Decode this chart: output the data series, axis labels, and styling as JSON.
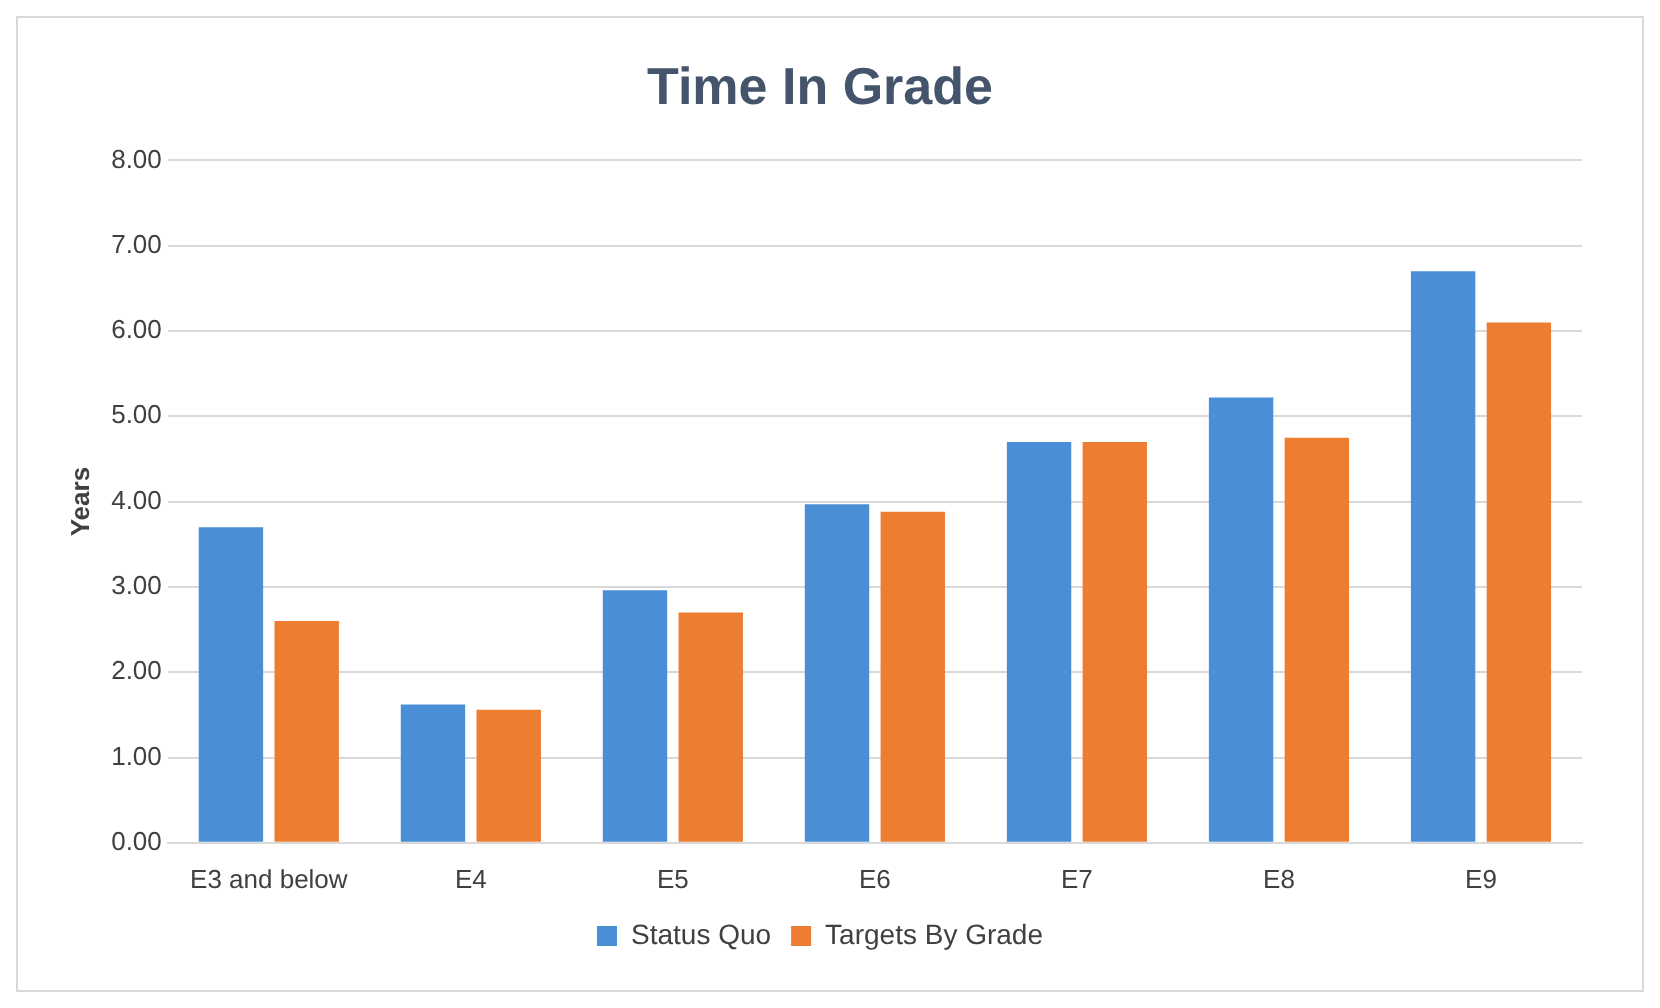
{
  "chart_data": {
    "type": "bar",
    "title": "Time In Grade",
    "ylabel": "Years",
    "categories": [
      "E3 and below",
      "E4",
      "E5",
      "E6",
      "E7",
      "E8",
      "E9"
    ],
    "series": [
      {
        "name": "Status Quo",
        "color": "#4a8fd6",
        "values": [
          3.7,
          1.62,
          2.96,
          3.97,
          4.7,
          5.22,
          6.7
        ]
      },
      {
        "name": "Targets By Grade",
        "color": "#ed7d31",
        "values": [
          2.6,
          1.56,
          2.7,
          3.88,
          4.7,
          4.75,
          6.1
        ]
      }
    ],
    "ylim": [
      0,
      8
    ],
    "yticks": [
      {
        "value": 0,
        "label": "0.00"
      },
      {
        "value": 1,
        "label": "1.00"
      },
      {
        "value": 2,
        "label": "2.00"
      },
      {
        "value": 3,
        "label": "3.00"
      },
      {
        "value": 4,
        "label": "4.00"
      },
      {
        "value": 5,
        "label": "5.00"
      },
      {
        "value": 6,
        "label": "6.00"
      },
      {
        "value": 7,
        "label": "7.00"
      },
      {
        "value": 8,
        "label": "8.00"
      }
    ],
    "grid": "y",
    "legend": "bottom"
  }
}
